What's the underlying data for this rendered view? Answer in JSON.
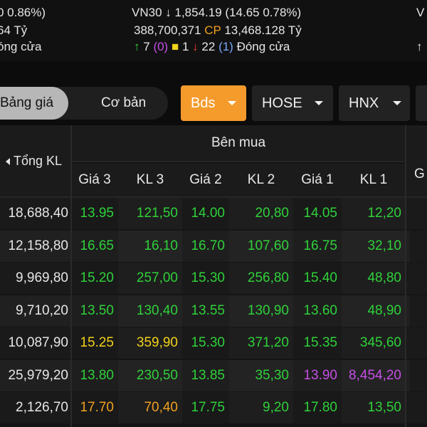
{
  "summary": {
    "left": {
      "change": "0 0.86%)",
      "value": "64 Tỷ",
      "status": "óng cửa"
    },
    "vn30": {
      "name": "VN30",
      "index": "1,854.19",
      "change": "(14.65 0.78%)",
      "volume": "388,700,371",
      "cp_label": "CP",
      "value": "13,468.128",
      "unit": "Tỷ",
      "up_count": "7",
      "up_ceiling": "(0)",
      "ref_count": "1",
      "down_count": "22",
      "down_floor": "(1)",
      "status": "Đóng cửa"
    },
    "right_partial": "V"
  },
  "tabs": {
    "segment": [
      "Bảng giá",
      "Cơ bản"
    ],
    "active_segment": "Bảng giá",
    "dropdowns": [
      {
        "label": "Bds",
        "active": true
      },
      {
        "label": "HOSE",
        "active": false
      },
      {
        "label": "HNX",
        "active": false
      }
    ]
  },
  "table": {
    "left_header": "Tổng KL",
    "group_header": "Bên mua",
    "right_partial_header": "G",
    "columns": [
      "Giá 3",
      "KL 3",
      "Giá 2",
      "KL 2",
      "Giá 1",
      "KL 1"
    ],
    "colors": {
      "green": "#2fd13a",
      "yellow": "#f2d21a",
      "purple": "#c64ee6",
      "orange": "#f0a020"
    },
    "rows": [
      {
        "total": "18,688,40",
        "cells": [
          [
            "13.95",
            "green"
          ],
          [
            "121,50",
            "green"
          ],
          [
            "14.00",
            "green"
          ],
          [
            "20,80",
            "green"
          ],
          [
            "14.05",
            "green"
          ],
          [
            "12,20",
            "green"
          ]
        ]
      },
      {
        "total": "12,158,80",
        "cells": [
          [
            "16.65",
            "green"
          ],
          [
            "16,10",
            "green"
          ],
          [
            "16.70",
            "green"
          ],
          [
            "107,60",
            "green"
          ],
          [
            "16.75",
            "green"
          ],
          [
            "32,10",
            "green"
          ]
        ]
      },
      {
        "total": "9,969,80",
        "cells": [
          [
            "15.20",
            "green"
          ],
          [
            "257,00",
            "green"
          ],
          [
            "15.30",
            "green"
          ],
          [
            "256,80",
            "green"
          ],
          [
            "15.40",
            "green"
          ],
          [
            "48,80",
            "green"
          ]
        ]
      },
      {
        "total": "9,710,20",
        "cells": [
          [
            "13.50",
            "green"
          ],
          [
            "130,40",
            "green"
          ],
          [
            "13.55",
            "green"
          ],
          [
            "130,90",
            "green"
          ],
          [
            "13.60",
            "green"
          ],
          [
            "48,90",
            "green"
          ]
        ]
      },
      {
        "total": "10,087,90",
        "cells": [
          [
            "15.25",
            "yellow"
          ],
          [
            "359,90",
            "yellow"
          ],
          [
            "15.30",
            "green"
          ],
          [
            "371,20",
            "green"
          ],
          [
            "15.35",
            "green"
          ],
          [
            "345,60",
            "green"
          ]
        ]
      },
      {
        "total": "25,979,20",
        "cells": [
          [
            "13.80",
            "green"
          ],
          [
            "230,50",
            "green"
          ],
          [
            "13.85",
            "green"
          ],
          [
            "35,30",
            "green"
          ],
          [
            "13.90",
            "purple"
          ],
          [
            "8,454,20",
            "purple"
          ]
        ]
      },
      {
        "total": "2,126,70",
        "cells": [
          [
            "17.70",
            "orange"
          ],
          [
            "70,40",
            "orange"
          ],
          [
            "17.75",
            "green"
          ],
          [
            "9,20",
            "green"
          ],
          [
            "17.80",
            "green"
          ],
          [
            "13,50",
            "green"
          ]
        ]
      }
    ]
  }
}
